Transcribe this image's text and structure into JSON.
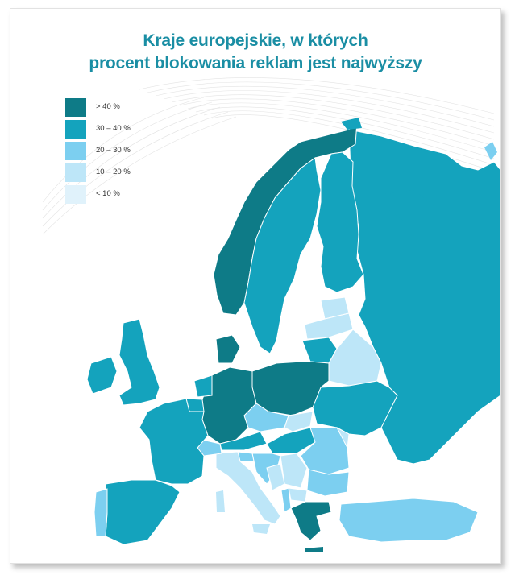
{
  "title": {
    "line1": "Kraje europejskie, w których",
    "line2": "procent blokowania reklam jest najwyższy"
  },
  "legend": [
    {
      "label": "> 40 %",
      "color": "#0e7b87"
    },
    {
      "label": "30 – 40 %",
      "color": "#14a3bd"
    },
    {
      "label": "20 – 30 %",
      "color": "#7ccff0"
    },
    {
      "label": "10 – 20 %",
      "color": "#bde6f8"
    },
    {
      "label": "< 10 %",
      "color": "#e0f2fb"
    }
  ]
}
